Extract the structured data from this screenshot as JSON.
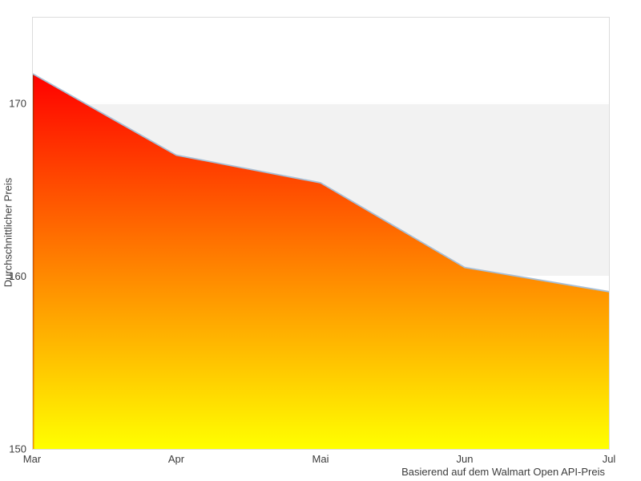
{
  "chart_data": {
    "type": "area",
    "categories": [
      "Mar",
      "Apr",
      "Mai",
      "Jun",
      "Jul"
    ],
    "values": [
      171.7,
      167.0,
      165.4,
      160.5,
      159.1
    ],
    "title": "",
    "ylabel": "Durchschnittlicher Preis",
    "caption": "Basierend auf dem Walmart Open API-Preis",
    "ylim": [
      150,
      175
    ],
    "yticks": [
      150,
      160,
      170
    ],
    "plot_band": {
      "from": 160,
      "to": 170,
      "color": "#f2f2f2"
    },
    "legend": "none",
    "grid": "white-lines-over-band",
    "colors": {
      "area_gradient_top": "#ff0000",
      "area_gradient_bottom": "#ffff00",
      "line": "#a7bfd6",
      "left_edge_top": "#b81d00",
      "left_edge_bottom": "#ee9900",
      "plot_border": "#dcdcdc",
      "gridline": "#ffffff",
      "text": "#3c3c3c",
      "background": "#ffffff"
    }
  }
}
